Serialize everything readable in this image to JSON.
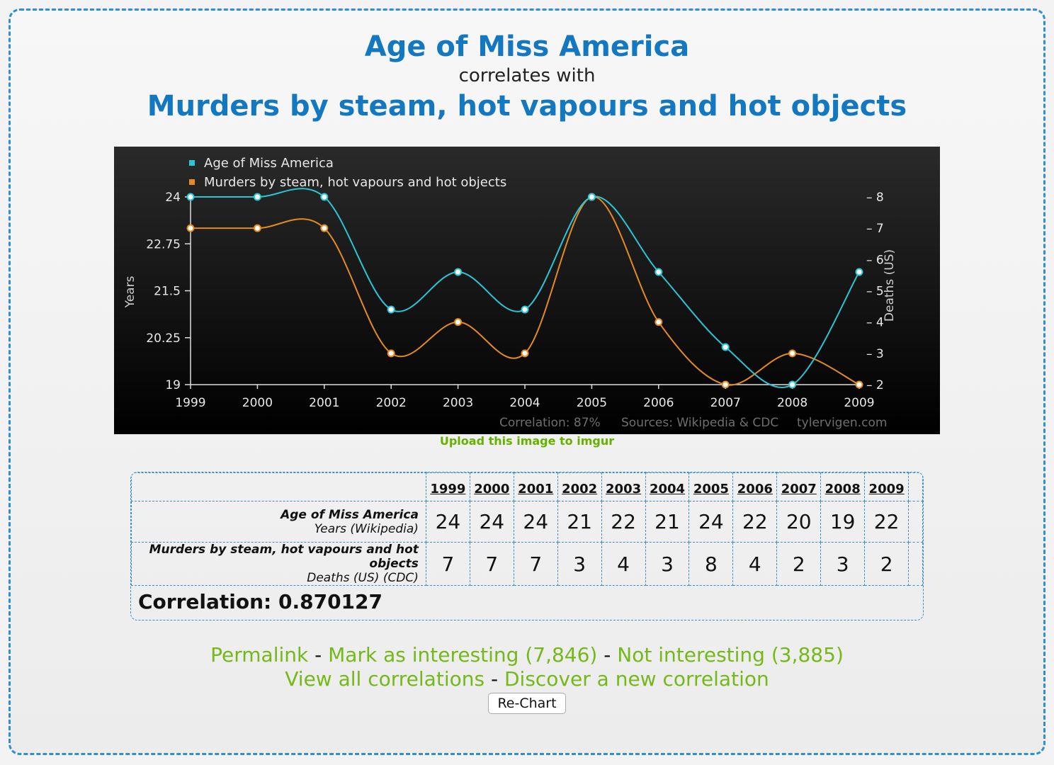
{
  "header": {
    "title_a": "Age of Miss America",
    "connector": "correlates with",
    "title_b": "Murders by steam, hot vapours and hot objects"
  },
  "colors": {
    "series_a": "#29c7d6",
    "series_b": "#e58a1f",
    "title": "#1478c0",
    "link": "#74b81a",
    "border": "#3a8fcc"
  },
  "chart_data": {
    "type": "line",
    "x": [
      "1999",
      "2000",
      "2001",
      "2002",
      "2003",
      "2004",
      "2005",
      "2006",
      "2007",
      "2008",
      "2009"
    ],
    "series": [
      {
        "name": "Age of Miss America",
        "axis": "left",
        "values": [
          24,
          24,
          24,
          21,
          22,
          21,
          24,
          22,
          20,
          19,
          22
        ]
      },
      {
        "name": "Murders by steam, hot vapours and hot objects",
        "axis": "right",
        "values": [
          7,
          7,
          7,
          3,
          4,
          3,
          8,
          4,
          2,
          3,
          2
        ]
      }
    ],
    "ylabel": "Years",
    "ylabel_right": "Deaths (US)",
    "ylim": [
      19,
      24
    ],
    "ylim_right": [
      2,
      8
    ],
    "yticks": [
      "19",
      "20.25",
      "21.5",
      "22.75",
      "24"
    ],
    "yticks_right": [
      "2",
      "3",
      "4",
      "5",
      "6",
      "7",
      "8"
    ],
    "legend_position": "top-left",
    "footer": {
      "correlation": "Correlation: 87%",
      "sources": "Sources: Wikipedia & CDC",
      "site": "tylervigen.com"
    }
  },
  "upload_link": "Upload this image to imgur",
  "table": {
    "years": [
      "1999",
      "2000",
      "2001",
      "2002",
      "2003",
      "2004",
      "2005",
      "2006",
      "2007",
      "2008",
      "2009"
    ],
    "row_a": {
      "label": "Age of Miss America",
      "sublabel": "Years (Wikipedia)",
      "values": [
        "24",
        "24",
        "24",
        "21",
        "22",
        "21",
        "24",
        "22",
        "20",
        "19",
        "22"
      ]
    },
    "row_b": {
      "label": "Murders by steam, hot vapours and hot objects",
      "sublabel": "Deaths (US) (CDC)",
      "values": [
        "7",
        "7",
        "7",
        "3",
        "4",
        "3",
        "8",
        "4",
        "2",
        "3",
        "2"
      ]
    },
    "correlation": "Correlation: 0.870127"
  },
  "links": {
    "permalink": "Permalink",
    "mark": "Mark as interesting (7,846)",
    "not_interesting": "Not interesting (3,885)",
    "view_all": "View all correlations",
    "discover": "Discover a new correlation",
    "separator": "-"
  },
  "button": {
    "label": "Re-Chart"
  }
}
